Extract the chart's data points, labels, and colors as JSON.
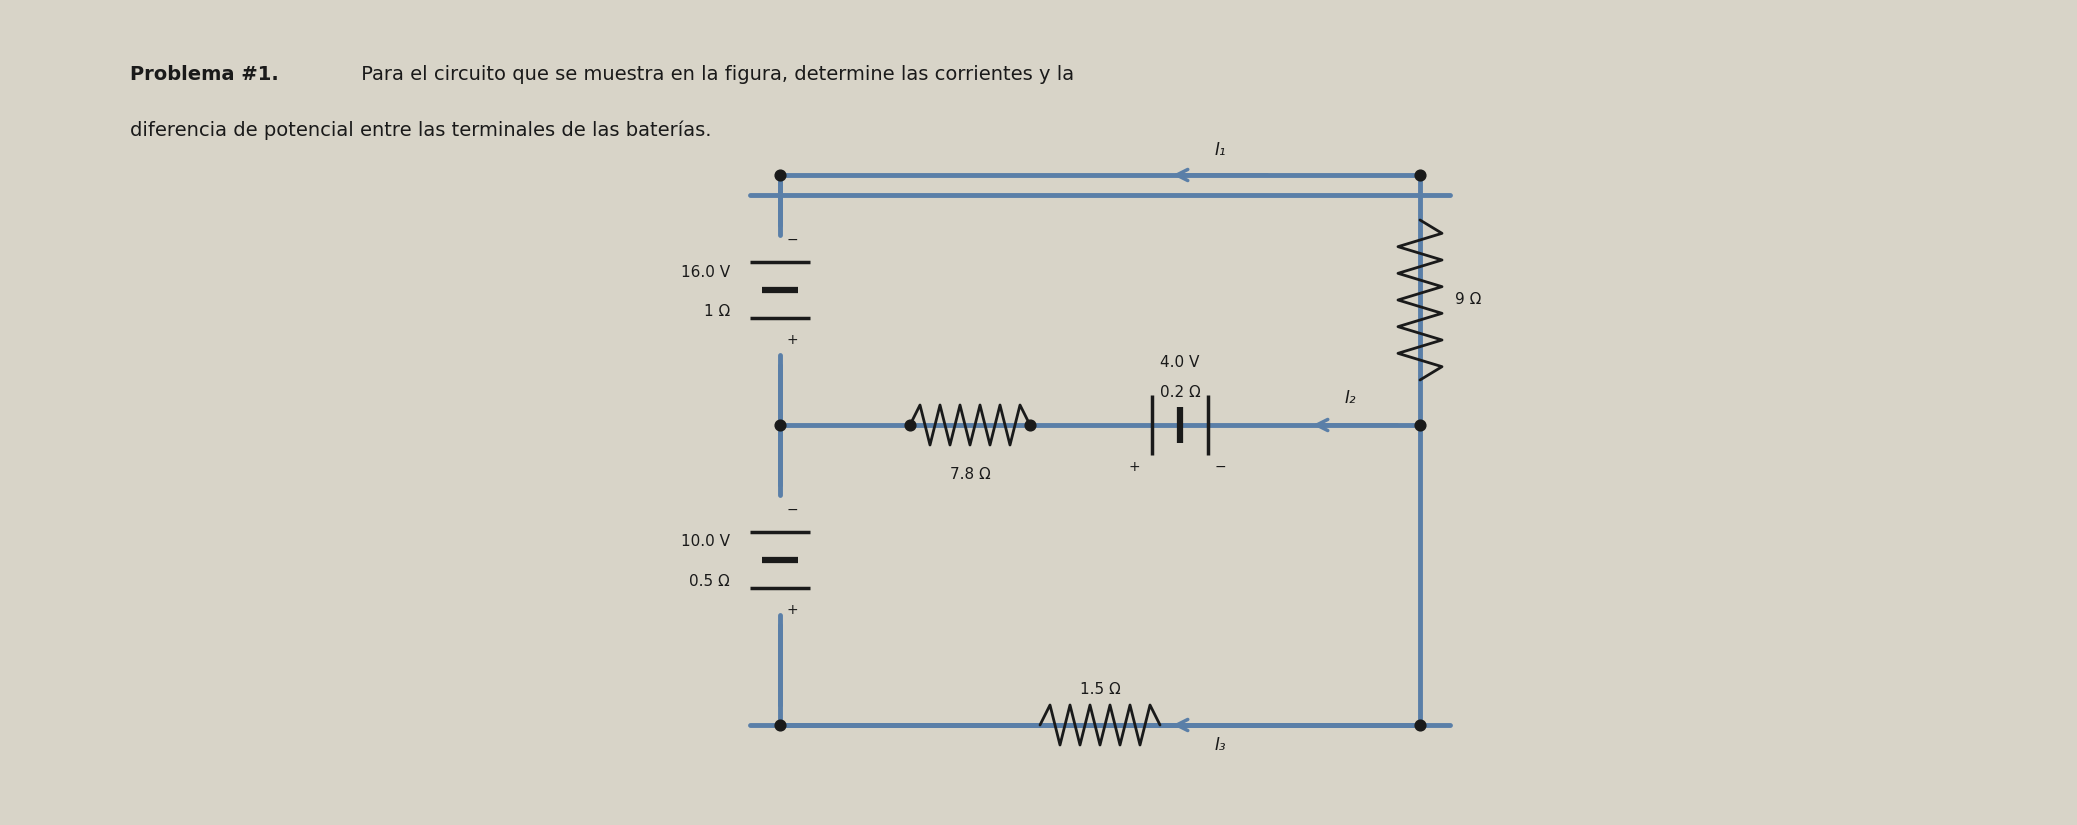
{
  "title_bold": "Problema #1.",
  "title_normal": " Para el circuito que se muestra en la figura, determine las corrientes y la",
  "subtitle": "diferencia de potencial entre las terminales de las baterías.",
  "bg_color": "#d8d4c8",
  "circuit_color": "#5a7fa8",
  "circuit_lw": 3.5,
  "text_color": "#1a1a1a",
  "node_color": "#1a1a1a",
  "battery1_emf": "16.0 V",
  "battery1_r": "1 Ω",
  "battery2_emf": "10.0 V",
  "battery2_r": "0.5 Ω",
  "battery3_emf": "4.0 V",
  "battery3_r": "0.2 Ω",
  "resistor1": "9 Ω",
  "resistor2": "7.8 Ω",
  "resistor3": "1.5 Ω",
  "I1_label": "I₁",
  "I2_label": "I₂",
  "I3_label": "I₃"
}
